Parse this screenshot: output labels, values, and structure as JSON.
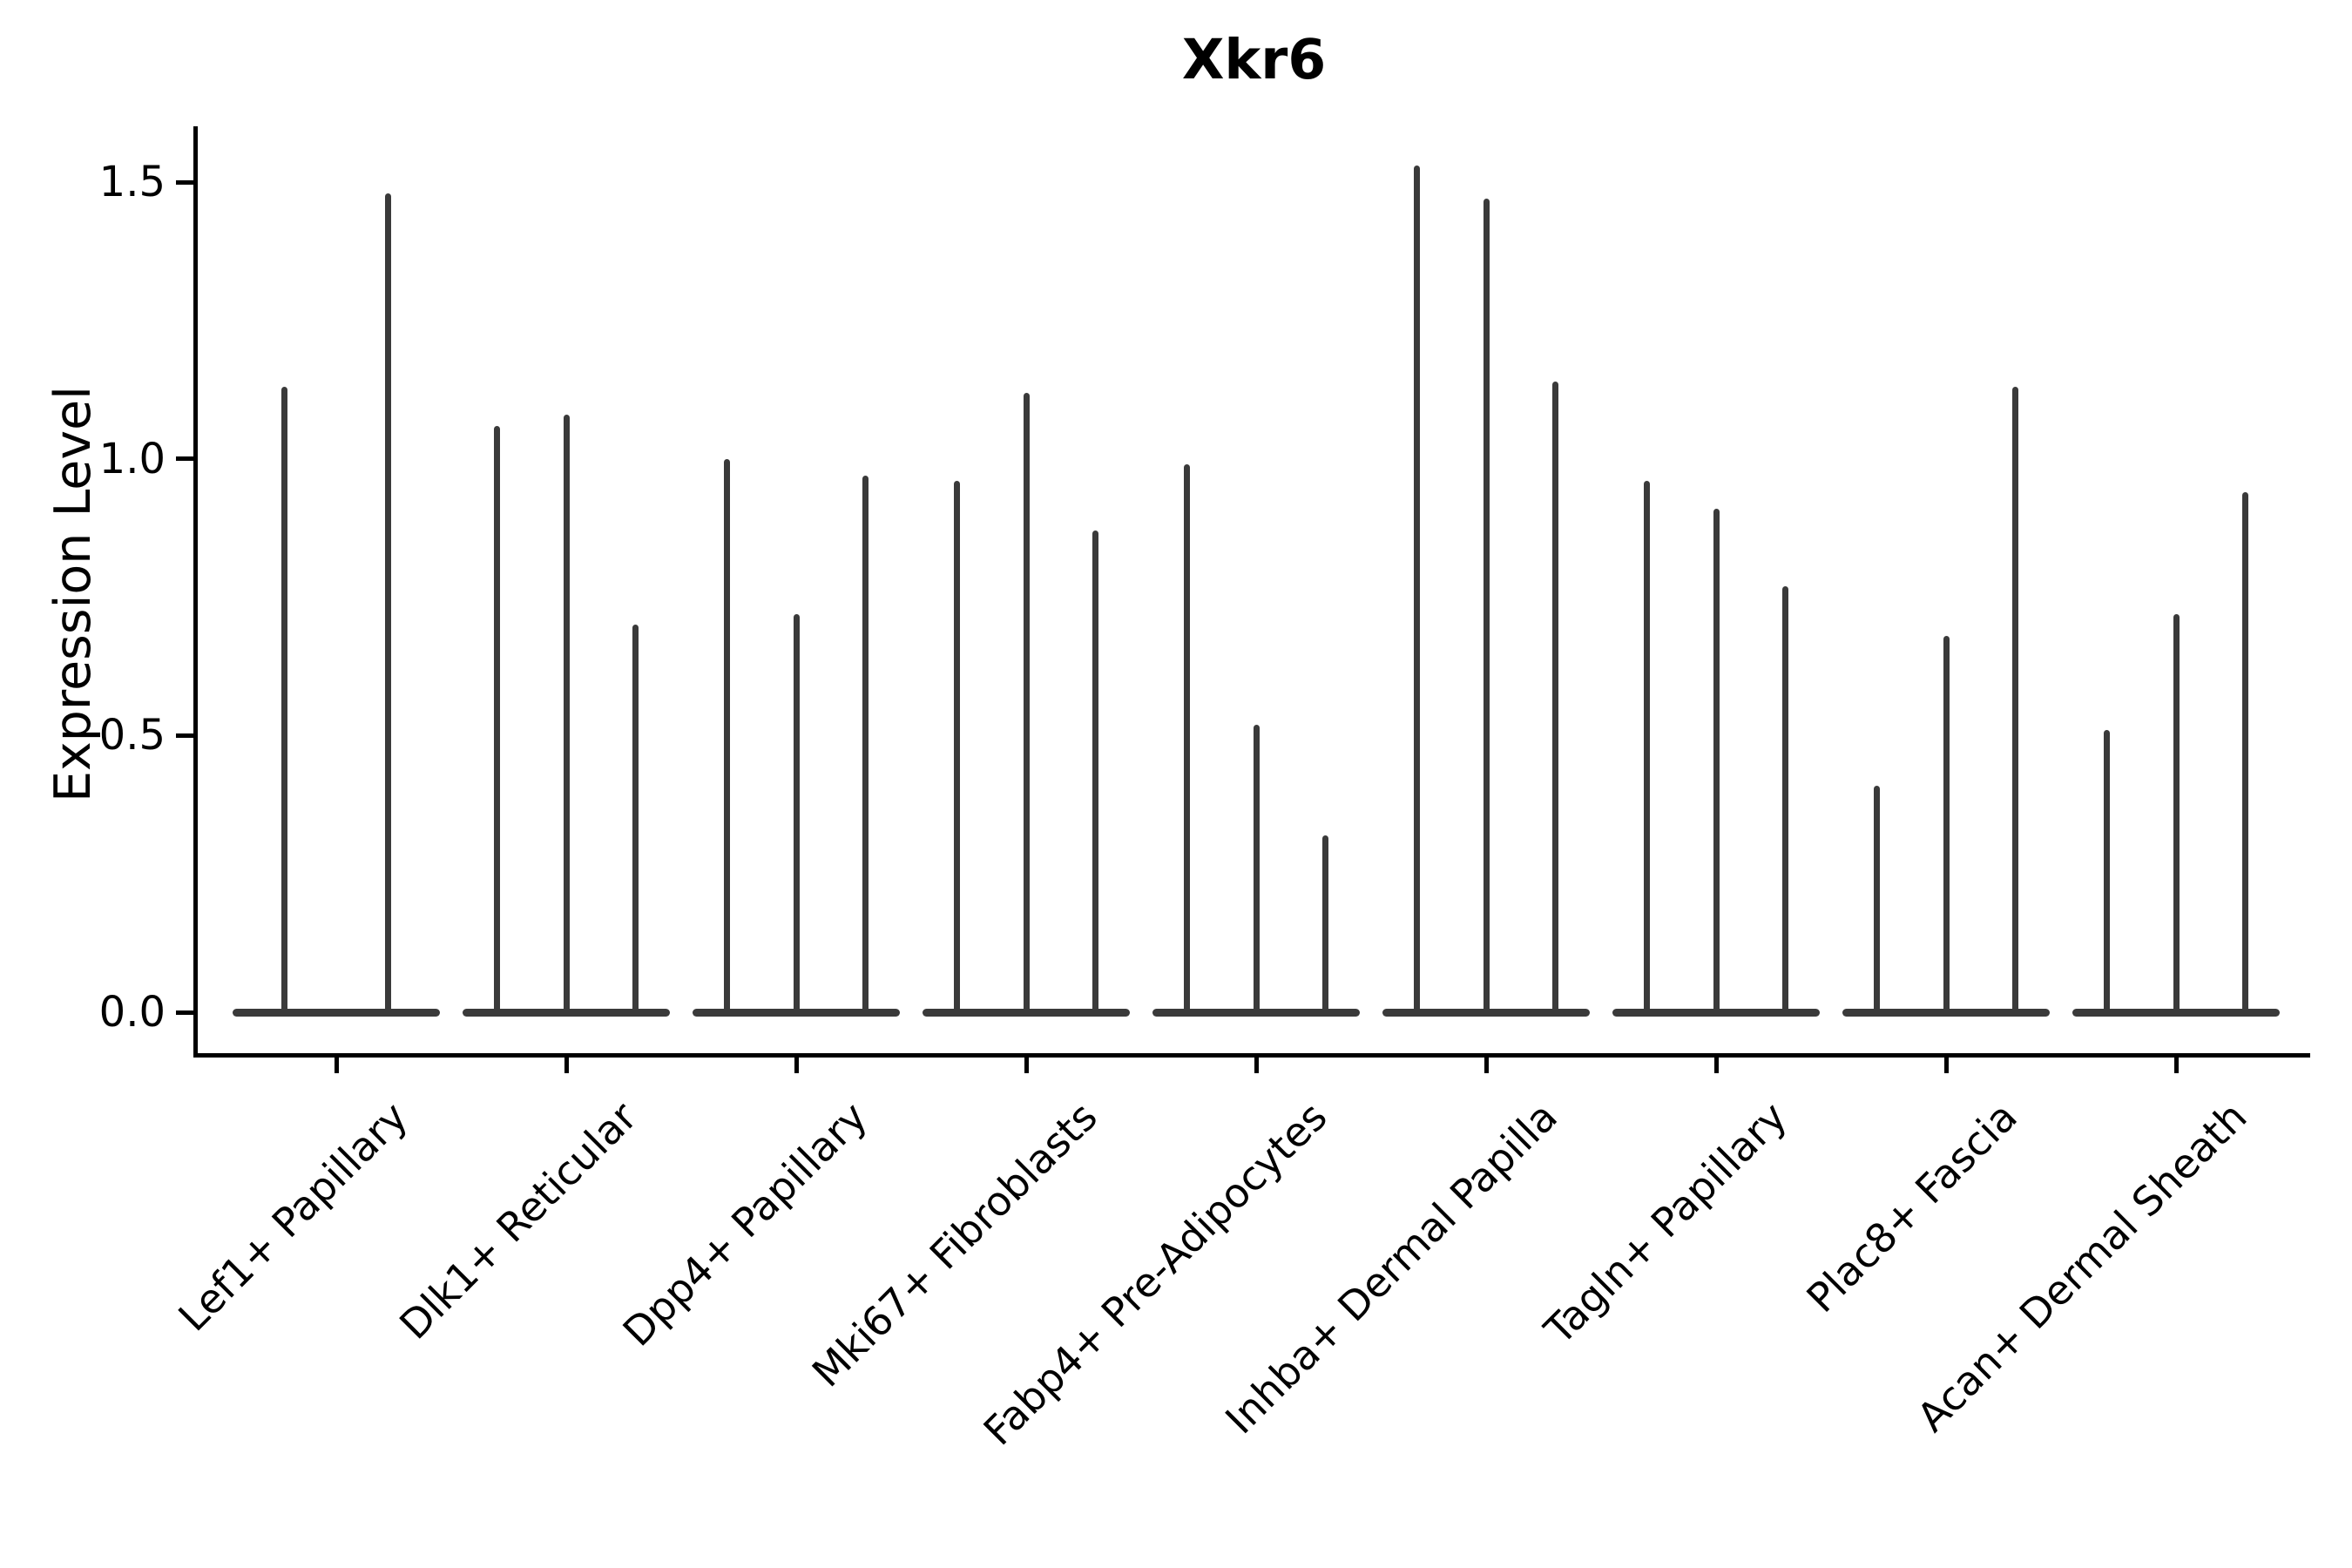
{
  "figure": {
    "background": "#ffffff"
  },
  "chart_data": {
    "type": "violin",
    "title": "Xkr6",
    "ylabel": "Expression Level",
    "xlabel": "",
    "yticks": [
      0.0,
      0.5,
      1.0,
      1.5
    ],
    "ylim": [
      -0.07,
      1.6
    ],
    "grid": false,
    "legend": "none",
    "x_tick_rotation_deg": 45,
    "style": {
      "violin_color": "#3a3a3a",
      "axis_color": "#000000",
      "text_color": "#000000",
      "violin_shape": "needle-thin spikes with flat wide base at zero"
    },
    "categories": [
      "Lef1+ Papillary",
      "Dlk1+ Reticular",
      "Dpp4+ Papillary",
      "Mki67+ Fibroblasts",
      "Fabp4+ Pre-Adipocytes",
      "Inhba+ Dermal Papilla",
      "Tagln+ Papillary",
      "Plac8+ Fascia",
      "Acan+ Dermal Sheath"
    ],
    "groups": [
      {
        "category": "Lef1+ Papillary",
        "violin_peak_expression": [
          1.13,
          1.48
        ]
      },
      {
        "category": "Dlk1+ Reticular",
        "violin_peak_expression": [
          1.06,
          1.08,
          0.7
        ]
      },
      {
        "category": "Dpp4+ Papillary",
        "violin_peak_expression": [
          1.0,
          0.72,
          0.97
        ]
      },
      {
        "category": "Mki67+ Fibroblasts",
        "violin_peak_expression": [
          0.96,
          1.12,
          0.87
        ]
      },
      {
        "category": "Fabp4+ Pre-Adipocytes",
        "violin_peak_expression": [
          0.99,
          0.52,
          0.32
        ]
      },
      {
        "category": "Inhba+ Dermal Papilla",
        "violin_peak_expression": [
          1.53,
          1.47,
          1.14
        ]
      },
      {
        "category": "Tagln+ Papillary",
        "violin_peak_expression": [
          0.96,
          0.91,
          0.77
        ]
      },
      {
        "category": "Plac8+ Fascia",
        "violin_peak_expression": [
          0.41,
          0.68,
          1.13
        ]
      },
      {
        "category": "Acan+ Dermal Sheath",
        "violin_peak_expression": [
          0.51,
          0.72,
          0.94
        ]
      }
    ]
  }
}
